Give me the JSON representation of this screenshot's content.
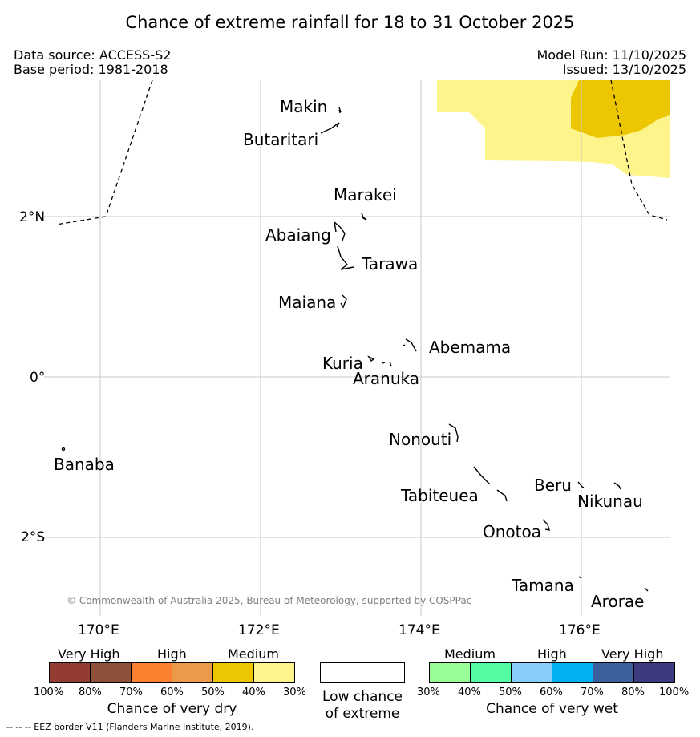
{
  "title": "Chance of extreme rainfall for 18 to 31 October 2025",
  "meta": {
    "data_source": "Data source: ACCESS-S2",
    "base_period": "Base period: 1981-2018",
    "model_run": "Model Run: 11/10/2025",
    "issued": "Issued: 13/10/2025"
  },
  "map": {
    "lat_labels": [
      "2°N",
      "0°",
      "2°S"
    ],
    "lon_labels": [
      "170°E",
      "172°E",
      "174°E",
      "176°E"
    ],
    "islands": [
      {
        "name": "Makin"
      },
      {
        "name": "Butaritari"
      },
      {
        "name": "Marakei"
      },
      {
        "name": "Abaiang"
      },
      {
        "name": "Tarawa"
      },
      {
        "name": "Maiana"
      },
      {
        "name": "Abemama"
      },
      {
        "name": "Kuria"
      },
      {
        "name": "Aranuka"
      },
      {
        "name": "Nonouti"
      },
      {
        "name": "Banaba"
      },
      {
        "name": "Tabiteuea"
      },
      {
        "name": "Beru"
      },
      {
        "name": "Nikunau"
      },
      {
        "name": "Onotoa"
      },
      {
        "name": "Tamana"
      },
      {
        "name": "Arorae"
      }
    ],
    "copyright": "© Commonwealth of Australia 2025, Bureau of Meteorology, supported by COSPPac",
    "colors": {
      "medium_dry": "#fdf48c",
      "medium_dry_40": "#ecc600",
      "grid": "#c8c8c8"
    }
  },
  "legend": {
    "dry": {
      "levels": [
        "Very High",
        "High",
        "Medium"
      ],
      "ticks": [
        "100%",
        "80%",
        "70%",
        "60%",
        "50%",
        "40%",
        "30%"
      ],
      "caption": "Chance of very dry",
      "colors": [
        "#933d32",
        "#8d5039",
        "#fd8030",
        "#eb9a4a",
        "#ecc600",
        "#fdf48c"
      ]
    },
    "neutral": {
      "caption_line1": "Low chance",
      "caption_line2": "of extreme",
      "color": "#ffffff"
    },
    "wet": {
      "levels": [
        "Medium",
        "High",
        "Very High"
      ],
      "ticks": [
        "30%",
        "40%",
        "50%",
        "60%",
        "70%",
        "80%",
        "100%"
      ],
      "caption": "Chance of very wet",
      "colors": [
        "#98fc98",
        "#54fca4",
        "#87cefa",
        "#00b1ef",
        "#3a619e",
        "#3b3b7e"
      ]
    }
  },
  "footnote": "--  --  -- EEZ border V11 (Flanders Marine Institute, 2019)."
}
